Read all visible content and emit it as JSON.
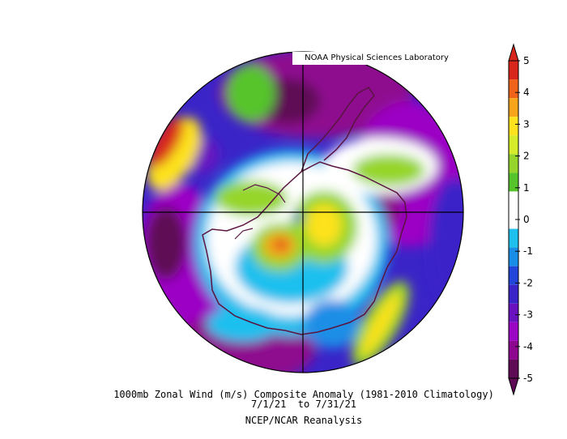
{
  "credit": "NOAA Physical Sciences Laboratory",
  "title_line1": "1000mb Zonal Wind (m/s) Composite Anomaly (1981-2010 Climatology)",
  "title_line2": "7/1/21  to 7/31/21",
  "title_line3": "NCEP/NCAR Reanalysis",
  "colorbar": {
    "ticks": [
      "5",
      "4",
      "3",
      "2",
      "1",
      "0",
      "-1",
      "-2",
      "-3",
      "-4",
      "-5"
    ],
    "colors": [
      "#d9261c",
      "#f0631a",
      "#f9a51c",
      "#fde21d",
      "#d6eb2a",
      "#96d62c",
      "#56c42b",
      "#ffffff",
      "#ffffff",
      "#1ec0ee",
      "#1a8ee6",
      "#2246d9",
      "#3a24c8",
      "#6a12c0",
      "#9b05c4",
      "#8e078f",
      "#5f0a55"
    ]
  }
}
